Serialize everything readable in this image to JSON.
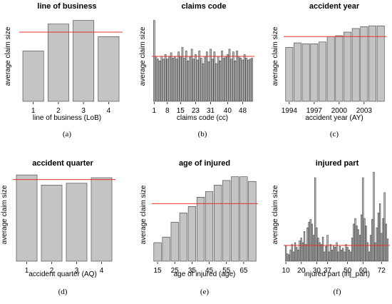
{
  "chart_data": [
    {
      "type": "bar",
      "title": "line of business",
      "xlabel": "line of business (LoB)",
      "ylabel": "average claim size",
      "caption": "(a)",
      "x_ticks": [
        "1",
        "2",
        "3",
        "4"
      ],
      "values": [
        0.56,
        0.86,
        0.9,
        0.72
      ],
      "ylim": [
        0,
        1
      ],
      "reference_line": 0.77,
      "reference_color": "#e8312f"
    },
    {
      "type": "bar",
      "title": "claims code",
      "xlabel": "claims code (cc)",
      "ylabel": "average claim size",
      "caption": "(b)",
      "x_ticks": [
        "1",
        "8",
        "15",
        "23",
        "31",
        "40",
        "48"
      ],
      "x": [
        1,
        2,
        3,
        4,
        5,
        6,
        7,
        8,
        9,
        10,
        11,
        12,
        13,
        14,
        15,
        16,
        17,
        18,
        19,
        20,
        21,
        22,
        23,
        24,
        25,
        26,
        27,
        28,
        29,
        30,
        31,
        32,
        33,
        34,
        35,
        36,
        37,
        38,
        39,
        40,
        41,
        42,
        43,
        44,
        45,
        46,
        47,
        48,
        49,
        50,
        51,
        52,
        53
      ],
      "values": [
        0.9,
        0.5,
        0.47,
        0.45,
        0.5,
        0.47,
        0.52,
        0.47,
        0.5,
        0.54,
        0.48,
        0.5,
        0.47,
        0.55,
        0.5,
        0.6,
        0.48,
        0.56,
        0.45,
        0.5,
        0.58,
        0.47,
        0.52,
        0.46,
        0.56,
        0.48,
        0.42,
        0.5,
        0.55,
        0.44,
        0.58,
        0.47,
        0.55,
        0.42,
        0.5,
        0.45,
        0.56,
        0.48,
        0.5,
        0.52,
        0.58,
        0.47,
        0.55,
        0.45,
        0.56,
        0.5,
        0.48,
        0.46,
        0.52,
        0.48,
        0.46,
        0.47,
        0.48
      ],
      "ylim": [
        0,
        1
      ],
      "reference_line": 0.5,
      "reference_color": "#e8312f"
    },
    {
      "type": "bar",
      "title": "accident year",
      "xlabel": "accident year (AY)",
      "ylabel": "average claim size",
      "caption": "(c)",
      "x_ticks": [
        "1994",
        "1997",
        "2000",
        "2003"
      ],
      "x": [
        1994,
        1995,
        1996,
        1997,
        1998,
        1999,
        2000,
        2001,
        2002,
        2003,
        2004,
        2005
      ],
      "values": [
        0.6,
        0.65,
        0.64,
        0.64,
        0.66,
        0.72,
        0.73,
        0.77,
        0.81,
        0.83,
        0.84,
        0.84
      ],
      "ylim": [
        0,
        1
      ],
      "reference_line": 0.72,
      "reference_color": "#e8312f"
    },
    {
      "type": "bar",
      "title": "accident quarter",
      "xlabel": "accident quarter (AQ)",
      "ylabel": "average claim size",
      "caption": "(d)",
      "x_ticks": [
        "1",
        "2",
        "3",
        "4"
      ],
      "values": [
        0.93,
        0.82,
        0.84,
        0.9
      ],
      "ylim": [
        0,
        1
      ],
      "reference_line": 0.88,
      "reference_color": "#e8312f"
    },
    {
      "type": "bar",
      "title": "age of injured",
      "xlabel": "age of injured (age)",
      "ylabel": "average claim size",
      "caption": "(e)",
      "x_ticks": [
        "15",
        "25",
        "35",
        "45",
        "55",
        "65"
      ],
      "x": [
        15,
        20,
        25,
        30,
        35,
        40,
        45,
        50,
        55,
        60,
        65,
        70
      ],
      "values": [
        0.2,
        0.26,
        0.42,
        0.52,
        0.59,
        0.69,
        0.75,
        0.82,
        0.87,
        0.91,
        0.91,
        0.86
      ],
      "ylim": [
        0,
        1
      ],
      "reference_line": 0.62,
      "reference_color": "#e8312f"
    },
    {
      "type": "bar",
      "title": "injured part",
      "xlabel": "injured part (inj_part)",
      "ylabel": "average claim size",
      "caption": "(f)",
      "x_ticks": [
        "10",
        "20",
        "30",
        "37",
        "50",
        "60",
        "72"
      ],
      "x": [
        10,
        11,
        12,
        13,
        14,
        15,
        16,
        17,
        18,
        19,
        20,
        21,
        22,
        23,
        24,
        25,
        26,
        27,
        28,
        29,
        30,
        31,
        32,
        33,
        34,
        35,
        36,
        37,
        38,
        39,
        40,
        41,
        42,
        43,
        44,
        45,
        46,
        47,
        48,
        49,
        50,
        51,
        52,
        53,
        54,
        55,
        56,
        57,
        58,
        59,
        60,
        61,
        62,
        63,
        64,
        65,
        66,
        67,
        68,
        69,
        70,
        71,
        72,
        73,
        74,
        75,
        76
      ],
      "values": [
        0.17,
        0.08,
        0.07,
        0.12,
        0.18,
        0.1,
        0.2,
        0.15,
        0.12,
        0.22,
        0.25,
        0.2,
        0.32,
        0.18,
        0.36,
        0.42,
        0.45,
        0.4,
        0.28,
        0.9,
        0.36,
        0.25,
        0.2,
        0.18,
        0.26,
        0.1,
        0.16,
        0.28,
        0.1,
        0.18,
        0.12,
        0.17,
        0.15,
        0.2,
        0.1,
        0.16,
        0.12,
        0.14,
        0.1,
        0.18,
        0.15,
        0.12,
        0.1,
        0.25,
        0.4,
        0.46,
        0.38,
        0.34,
        0.28,
        0.5,
        0.9,
        0.46,
        0.38,
        0.2,
        0.1,
        0.28,
        0.45,
        0.96,
        0.2,
        0.36,
        0.52,
        0.62,
        0.3,
        0.46,
        0.74,
        0.4,
        0.24
      ],
      "ylim": [
        0,
        1
      ],
      "reference_line": 0.17,
      "reference_color": "#e8312f"
    }
  ]
}
